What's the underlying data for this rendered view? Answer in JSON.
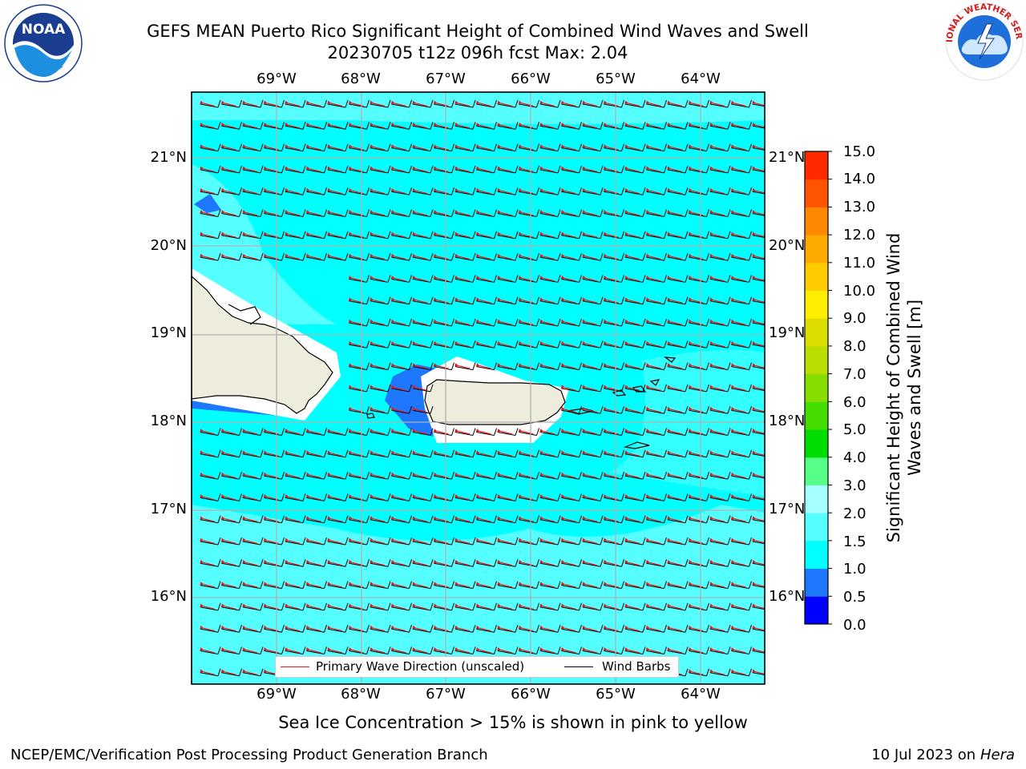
{
  "title": {
    "line1": "GEFS MEAN Puerto Rico Significant Height of Combined Wind Waves and Swell",
    "line2": "20230705 t12z 096h fcst   Max: 2.04"
  },
  "logos": {
    "left": "noaa-logo",
    "left_text": "NOAA",
    "right": "national-weather-service-logo",
    "right_text": "NATIONAL WEATHER SERVICE"
  },
  "map": {
    "region": "Puerto Rico",
    "lon_labels": [
      "69°W",
      "68°W",
      "67°W",
      "66°W",
      "65°W",
      "64°W"
    ],
    "lat_labels": [
      "21°N",
      "20°N",
      "19°N",
      "18°N",
      "17°N",
      "16°N"
    ],
    "colors": {
      "ocean_main": "#00ffff",
      "ocean_light": "#55ffff",
      "ocean_blue": "#1e78ff",
      "land": "#eeecdc",
      "grid": "#b0b0b0",
      "wave_arrow": "#e81818",
      "wind_barb": "#000000"
    }
  },
  "colorbar": {
    "label": "Significant Height of Combined Wind Waves and Swell [m]",
    "ticks": [
      "0.0",
      "0.5",
      "1.0",
      "1.5",
      "2.0",
      "3.0",
      "4.0",
      "5.0",
      "6.0",
      "7.0",
      "8.0",
      "9.0",
      "10.0",
      "11.0",
      "12.0",
      "13.0",
      "14.0",
      "15.0"
    ],
    "colors": [
      "#0000ff",
      "#1e78ff",
      "#00ffff",
      "#55ffff",
      "#a8ffff",
      "#55ff88",
      "#00dd00",
      "#44dd00",
      "#88dd00",
      "#bbdd00",
      "#dddd00",
      "#ffee00",
      "#ffcc00",
      "#ffaa00",
      "#ff8800",
      "#ff5500",
      "#ff2a00"
    ]
  },
  "legend": {
    "wave_label": "Primary Wave Direction (unscaled)",
    "wind_label": "Wind Barbs"
  },
  "ice_note": "Sea Ice Concentration > 15% is shown in pink to yellow",
  "footer": {
    "left": "NCEP/EMC/Verification Post Processing Product Generation Branch",
    "right_prefix": "10 Jul 2023 on ",
    "right_host": "Hera"
  }
}
